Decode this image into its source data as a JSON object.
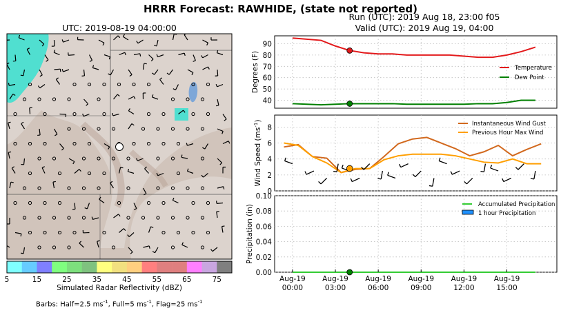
{
  "header": {
    "title": "HRRR Forecast: RAWHIDE, (state not reported)",
    "run_line": "Run (UTC): 2019 Aug 18, 23:00 f05",
    "valid_line": "Valid (UTC): 2019 Aug 19, 04:00"
  },
  "map": {
    "title": "UTC: 2019-08-19 04:00:00",
    "colorbar_label": "Simulated Radar Reflectivity (dBZ)",
    "colorbar_ticks": [
      "5",
      "15",
      "25",
      "35",
      "45",
      "55",
      "65",
      "75"
    ],
    "colorbar_colors": [
      "#7fffff",
      "#66ccff",
      "#7f7fff",
      "#7fff7f",
      "#7ddf7d",
      "#7fc27f",
      "#ffff7f",
      "#f2e07f",
      "#ffcf7f",
      "#ff7f7f",
      "#df7f7f",
      "#df7f7f",
      "#ff7fff",
      "#c9a6e0",
      "#7f7f7f"
    ],
    "barb_note_prefix": "Barbs: Half=2.5 ms",
    "barb_note_sup1": "-1",
    "barb_note_mid1": ", Full=5 ms",
    "barb_note_sup2": "-1",
    "barb_note_mid2": ", Flag=25 ms",
    "barb_note_sup3": "-1"
  },
  "chart_data": [
    {
      "type": "line",
      "panel": "temperature",
      "ylabel": "Degrees (F)",
      "ylim": [
        33,
        97
      ],
      "yticks": [
        40,
        50,
        60,
        70,
        80,
        90
      ],
      "grid": true,
      "legend_position": "right",
      "x_hours_from_00utc": [
        0,
        1,
        2,
        3,
        4,
        5,
        6,
        7,
        8,
        9,
        10,
        11,
        12,
        13,
        14,
        15,
        16,
        17
      ],
      "series": [
        {
          "name": "Temperature",
          "color": "#e31a1c",
          "values": [
            95,
            94,
            93,
            88,
            84,
            82,
            81,
            81,
            80,
            80,
            80,
            80,
            79,
            78,
            78,
            80,
            83,
            87
          ]
        },
        {
          "name": "Dew Point",
          "color": "#008000",
          "values": [
            37,
            36.5,
            36,
            36.5,
            37,
            37,
            37,
            37,
            36.5,
            36.5,
            36.5,
            36.5,
            36.5,
            37,
            37,
            38,
            40,
            40
          ]
        }
      ],
      "marker_hour": 4
    },
    {
      "type": "line",
      "panel": "wind",
      "ylabel": "Wind Speed (ms",
      "ylabel_sup": "-1",
      "ylabel_end": ")",
      "ylim": [
        0,
        9.5
      ],
      "yticks": [
        0,
        2,
        4,
        6,
        8
      ],
      "grid": true,
      "legend_position": "top-right",
      "x_hours_from_00utc": [
        -0.6,
        0.4,
        1.4,
        2.4,
        3.4,
        4.4,
        5.4,
        6.4,
        7.4,
        8.4,
        9.4,
        10.4,
        11.4,
        12.4,
        13.4,
        14.4,
        15.4,
        16.4,
        17.4
      ],
      "series": [
        {
          "name": "Instantaneous Wind Gust",
          "color": "#d2691e",
          "values": [
            5.5,
            5.8,
            4.3,
            4.1,
            2.3,
            2.7,
            2.8,
            4.3,
            5.9,
            6.5,
            6.7,
            6.0,
            5.3,
            4.4,
            4.9,
            5.7,
            4.4,
            5.2,
            5.9
          ]
        },
        {
          "name": "Previous Hour Max Wind",
          "color": "#ff9f00",
          "values": [
            6.0,
            5.7,
            4.3,
            3.5,
            2.3,
            2.8,
            2.8,
            3.9,
            4.4,
            4.6,
            4.6,
            4.6,
            4.4,
            4.0,
            3.6,
            3.5,
            4.0,
            3.4,
            3.4
          ]
        }
      ],
      "barb_hours": [
        0,
        1.5,
        2.4,
        3.2,
        4,
        4.7,
        5.4,
        6.3,
        7.2,
        8.1,
        9,
        9.9,
        10.8,
        11.7,
        12.6,
        13.5,
        14.4,
        15.3,
        16.2,
        17
      ],
      "marker_hour": 4
    },
    {
      "type": "bar",
      "panel": "precipitation",
      "ylabel": "Precipitation (in)",
      "ylim": [
        0,
        0.1
      ],
      "yticks": [
        "0.00",
        "0.02",
        "0.04",
        "0.06",
        "0.08",
        "0.10"
      ],
      "grid": true,
      "legend_position": "top-right",
      "series": [
        {
          "name": "Accumulated Precipitation",
          "color": "#33cc33",
          "values": [
            0,
            0,
            0,
            0,
            0,
            0,
            0,
            0,
            0,
            0,
            0,
            0,
            0,
            0,
            0,
            0,
            0,
            0
          ]
        },
        {
          "name": "1 hour Precipitation",
          "color": "#1e90ff",
          "values": [
            0,
            0,
            0,
            0,
            0,
            0,
            0,
            0,
            0,
            0,
            0,
            0,
            0,
            0,
            0,
            0,
            0,
            0
          ]
        }
      ],
      "xtick_hours": [
        0,
        3,
        6,
        9,
        12,
        15
      ],
      "xtick_labels_top": [
        "Aug-19",
        "Aug-19",
        "Aug-19",
        "Aug-19",
        "Aug-19",
        "Aug-19"
      ],
      "xtick_labels_bottom": [
        "00:00",
        "03:00",
        "06:00",
        "09:00",
        "12:00",
        "15:00"
      ],
      "marker_hour": 4
    }
  ]
}
